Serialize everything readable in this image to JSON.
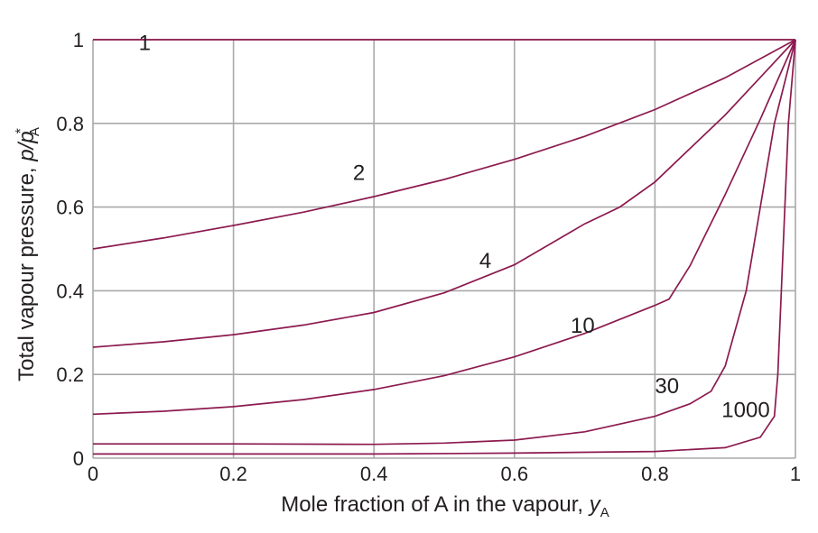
{
  "chart_data": {
    "type": "line",
    "title": "",
    "xlabel": {
      "text": "Mole fraction of A in the vapour, ",
      "var": "y",
      "sub": "A"
    },
    "ylabel": {
      "text": "Total vapour pressure, ",
      "var": "p/p",
      "sup": "*",
      "sub": "A"
    },
    "xlim": [
      0,
      1
    ],
    "ylim": [
      0,
      1
    ],
    "xticks": [
      "0",
      "0.2",
      "0.4",
      "0.6",
      "0.8",
      "1"
    ],
    "yticks": [
      "0",
      "0.2",
      "0.4",
      "0.6",
      "0.8",
      "1"
    ],
    "grid": true,
    "line_color": "#8c1a4f",
    "series": [
      {
        "name": "1",
        "label_at": [
          0.065,
          0.975
        ],
        "points": [
          [
            0,
            1.0
          ],
          [
            1,
            1.0
          ]
        ]
      },
      {
        "name": "2",
        "label_at": [
          0.37,
          0.665
        ],
        "points": [
          [
            0,
            0.5
          ],
          [
            0.1,
            0.526
          ],
          [
            0.2,
            0.556
          ],
          [
            0.3,
            0.588
          ],
          [
            0.4,
            0.625
          ],
          [
            0.5,
            0.666
          ],
          [
            0.6,
            0.714
          ],
          [
            0.7,
            0.769
          ],
          [
            0.8,
            0.833
          ],
          [
            0.9,
            0.909
          ],
          [
            1,
            1.0
          ]
        ]
      },
      {
        "name": "4",
        "label_at": [
          0.55,
          0.455
        ],
        "points": [
          [
            0,
            0.265
          ],
          [
            0.1,
            0.278
          ],
          [
            0.2,
            0.295
          ],
          [
            0.3,
            0.318
          ],
          [
            0.4,
            0.348
          ],
          [
            0.5,
            0.395
          ],
          [
            0.6,
            0.462
          ],
          [
            0.7,
            0.56
          ],
          [
            0.75,
            0.6
          ],
          [
            0.8,
            0.66
          ],
          [
            0.85,
            0.74
          ],
          [
            0.9,
            0.82
          ],
          [
            0.95,
            0.91
          ],
          [
            1,
            1.0
          ]
        ]
      },
      {
        "name": "10",
        "label_at": [
          0.68,
          0.3
        ],
        "points": [
          [
            0,
            0.105
          ],
          [
            0.1,
            0.112
          ],
          [
            0.2,
            0.123
          ],
          [
            0.3,
            0.14
          ],
          [
            0.4,
            0.164
          ],
          [
            0.5,
            0.197
          ],
          [
            0.6,
            0.242
          ],
          [
            0.7,
            0.298
          ],
          [
            0.8,
            0.365
          ],
          [
            0.82,
            0.38
          ],
          [
            0.85,
            0.46
          ],
          [
            0.9,
            0.63
          ],
          [
            0.95,
            0.81
          ],
          [
            1,
            1.0
          ]
        ]
      },
      {
        "name": "30",
        "label_at": [
          0.8,
          0.155
        ],
        "points": [
          [
            0,
            0.034
          ],
          [
            0.2,
            0.034
          ],
          [
            0.4,
            0.033
          ],
          [
            0.5,
            0.036
          ],
          [
            0.6,
            0.043
          ],
          [
            0.7,
            0.063
          ],
          [
            0.8,
            0.1
          ],
          [
            0.85,
            0.13
          ],
          [
            0.88,
            0.16
          ],
          [
            0.9,
            0.22
          ],
          [
            0.93,
            0.4
          ],
          [
            0.95,
            0.6
          ],
          [
            0.97,
            0.8
          ],
          [
            1,
            1.0
          ]
        ]
      },
      {
        "name": "1000",
        "label_at": [
          0.895,
          0.098
        ],
        "points": [
          [
            0,
            0.01
          ],
          [
            0.2,
            0.01
          ],
          [
            0.4,
            0.01
          ],
          [
            0.6,
            0.012
          ],
          [
            0.8,
            0.016
          ],
          [
            0.9,
            0.025
          ],
          [
            0.95,
            0.05
          ],
          [
            0.97,
            0.1
          ],
          [
            0.975,
            0.2
          ],
          [
            0.98,
            0.4
          ],
          [
            0.985,
            0.6
          ],
          [
            0.99,
            0.8
          ],
          [
            1,
            1.0
          ]
        ]
      }
    ]
  }
}
